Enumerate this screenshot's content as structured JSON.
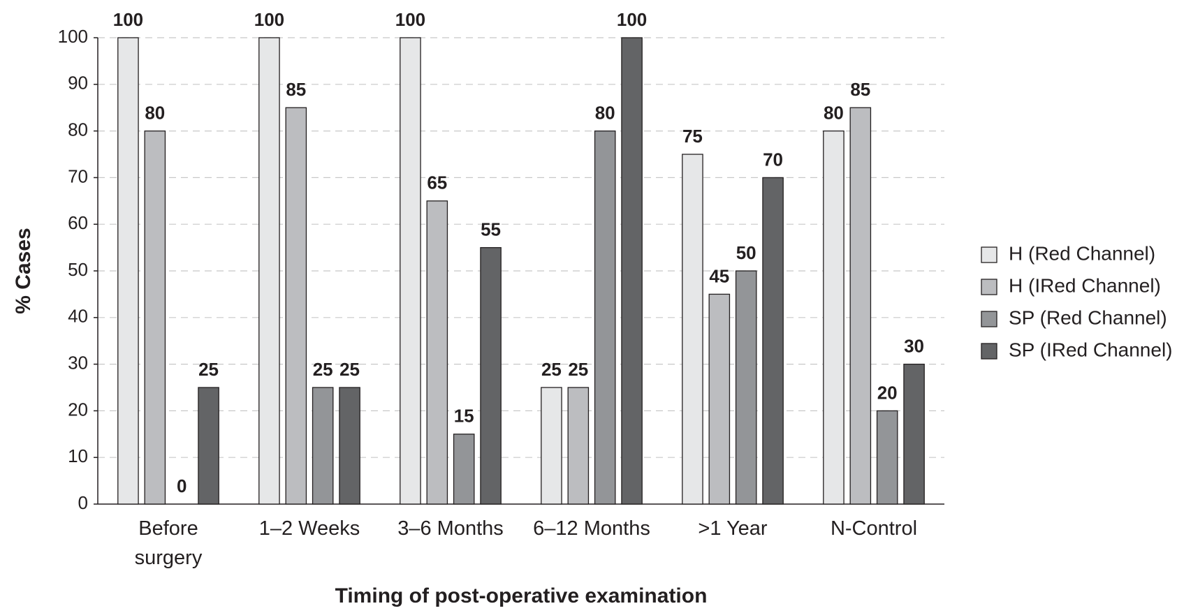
{
  "chart_data": {
    "type": "bar",
    "x_label": "Timing of post-operative examination",
    "y_label": "% Cases",
    "categories": [
      "Before surgery",
      "1–2 Weeks",
      "3–6 Months",
      "6–12 Months",
      ">1 Year",
      "N-Control"
    ],
    "series": [
      {
        "name": "H (Red Channel)",
        "color": "#e6e7e8",
        "values": [
          100,
          100,
          100,
          25,
          75,
          80
        ]
      },
      {
        "name": "H (IRed Channel)",
        "color": "#bcbdc0",
        "values": [
          80,
          85,
          65,
          25,
          45,
          85
        ]
      },
      {
        "name": "SP (Red Channel)",
        "color": "#939598",
        "values": [
          0,
          25,
          15,
          80,
          50,
          20
        ]
      },
      {
        "name": "SP (IRed Channel)",
        "color": "#636466",
        "values": [
          25,
          25,
          55,
          100,
          70,
          30
        ]
      }
    ],
    "ylim": [
      0,
      100
    ],
    "yticks": [
      0,
      10,
      20,
      30,
      40,
      50,
      60,
      70,
      80,
      90,
      100
    ],
    "grid": true,
    "legend": "right",
    "data_labels": true
  }
}
